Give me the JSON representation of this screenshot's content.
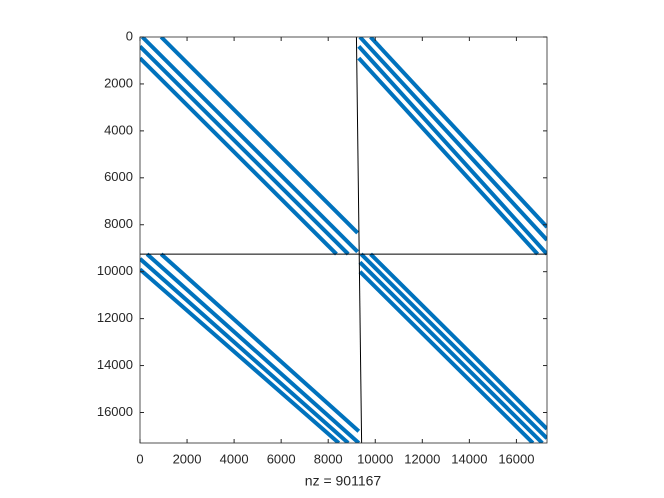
{
  "chart_data": {
    "type": "spy",
    "xlabel": "nz = 901167",
    "color": "#0072bd",
    "line_color": "#000000",
    "xlim": [
      0,
      17300
    ],
    "ylim": [
      0,
      17300
    ],
    "y_reversed": true,
    "xticks": [
      0,
      2000,
      4000,
      6000,
      8000,
      10000,
      12000,
      14000,
      16000
    ],
    "yticks": [
      0,
      2000,
      4000,
      6000,
      8000,
      10000,
      12000,
      14000,
      16000
    ],
    "bands": [
      {
        "x": [
          900,
          9250
        ],
        "y": [
          0,
          8350
        ]
      },
      {
        "x": [
          100,
          9250
        ],
        "y": [
          0,
          9150
        ]
      },
      {
        "x": [
          0,
          8850
        ],
        "y": [
          400,
          9250
        ]
      },
      {
        "x": [
          0,
          8350
        ],
        "y": [
          900,
          9250
        ]
      },
      {
        "x": [
          9800,
          17300
        ],
        "y": [
          0,
          8100
        ]
      },
      {
        "x": [
          9350,
          17300
        ],
        "y": [
          0,
          8650
        ]
      },
      {
        "x": [
          9300,
          17300
        ],
        "y": [
          400,
          9250
        ]
      },
      {
        "x": [
          9300,
          16900
        ],
        "y": [
          900,
          9250
        ]
      },
      {
        "x": [
          900,
          9300
        ],
        "y": [
          9250,
          16800
        ]
      },
      {
        "x": [
          300,
          9300
        ],
        "y": [
          9250,
          17300
        ]
      },
      {
        "x": [
          0,
          8850
        ],
        "y": [
          9450,
          17300
        ]
      },
      {
        "x": [
          0,
          8450
        ],
        "y": [
          9900,
          17300
        ]
      },
      {
        "x": [
          9800,
          17300
        ],
        "y": [
          9250,
          16700
        ]
      },
      {
        "x": [
          9400,
          17300
        ],
        "y": [
          9250,
          17100
        ]
      },
      {
        "x": [
          9350,
          17100
        ],
        "y": [
          9600,
          17300
        ]
      },
      {
        "x": [
          9350,
          16700
        ],
        "y": [
          10000,
          17300
        ]
      }
    ],
    "lines": [
      {
        "x": [
          0,
          17300
        ],
        "y": [
          9250,
          9250
        ]
      },
      {
        "x": [
          9200,
          9420
        ],
        "y": [
          0,
          17300
        ]
      }
    ]
  }
}
